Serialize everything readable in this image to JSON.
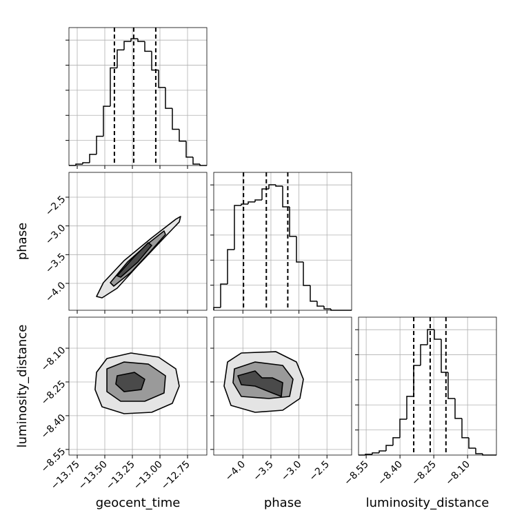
{
  "chart_data": [
    {
      "type": "histogram",
      "bins": [
        -13.825,
        -13.7625,
        -13.7,
        -13.6375,
        -13.575,
        -13.5125,
        -13.45,
        -13.3875,
        -13.325,
        -13.2625,
        -13.2,
        -13.1375,
        -13.075,
        -13.0125,
        -12.95,
        -12.8875,
        -12.825,
        -12.7625,
        -12.7,
        -12.6375,
        -12.575
      ],
      "values": [
        0,
        11,
        22,
        89,
        233,
        472,
        778,
        922,
        989,
        1011,
        989,
        911,
        761,
        622,
        456,
        289,
        194,
        67,
        11,
        0
      ],
      "quantiles": [
        -13.413,
        -13.238,
        -13.038
      ],
      "xlim": [
        -13.825,
        -12.575
      ],
      "ylim": [
        0,
        1100
      ],
      "xticks": [
        -13.75,
        -13.5,
        -13.25,
        -13.0,
        -12.75
      ],
      "yticks": [
        200,
        400,
        600,
        800,
        1000
      ],
      "grid": true
    },
    {
      "type": "contour",
      "y_label": "phase",
      "series": [
        {
          "color": "#e4e4e4",
          "x": [
            -13.575,
            -13.513,
            -13.325,
            -13.075,
            -12.856,
            -12.813,
            -12.825,
            -12.981,
            -13.2,
            -13.388,
            -13.525
          ],
          "y": [
            -4.228,
            -3.988,
            -3.604,
            -3.208,
            -2.883,
            -2.835,
            -2.931,
            -3.244,
            -3.688,
            -4.084,
            -4.252
          ]
        },
        {
          "color": "#9a9a9a",
          "x": [
            -13.45,
            -13.294,
            -13.106,
            -12.963,
            -12.95,
            -13.088,
            -13.263,
            -13.419
          ],
          "y": [
            -3.988,
            -3.628,
            -3.304,
            -3.088,
            -3.148,
            -3.448,
            -3.808,
            -4.048
          ]
        },
        {
          "color": "#4a4a4a",
          "x": [
            -13.388,
            -13.231,
            -13.106,
            -13.075,
            -13.2,
            -13.356
          ],
          "y": [
            -3.868,
            -3.532,
            -3.292,
            -3.34,
            -3.628,
            -3.892
          ]
        }
      ],
      "xlim": [
        -13.825,
        -12.575
      ],
      "ylim": [
        -4.468,
        -2.068
      ],
      "xticks": [
        -13.75,
        -13.5,
        -13.25,
        -13.0,
        -12.75
      ],
      "yticks": [
        {
          "value": -2.5,
          "label": "−2.5"
        },
        {
          "value": -3.0,
          "label": "−3.0"
        },
        {
          "value": -3.5,
          "label": "−3.5"
        },
        {
          "value": -4.0,
          "label": "−4.0"
        }
      ],
      "grid": true
    },
    {
      "type": "histogram",
      "bins": [
        -4.52,
        -4.397,
        -4.274,
        -4.151,
        -4.028,
        -3.905,
        -3.782,
        -3.659,
        -3.536,
        -3.413,
        -3.29,
        -3.167,
        -3.044,
        -2.921,
        -2.798,
        -2.675,
        -2.552,
        -2.429,
        -2.306,
        -2.183,
        -2.06
      ],
      "values": [
        22,
        209,
        484,
        836,
        847,
        864,
        880,
        968,
        1001,
        990,
        825,
        589,
        385,
        198,
        72,
        33,
        11,
        0,
        0,
        0
      ],
      "quantiles": [
        -3.989,
        -3.582,
        -3.199
      ],
      "xlim": [
        -4.52,
        -2.06
      ],
      "ylim": [
        0,
        1100
      ],
      "xticks": [
        -4.0,
        -3.5,
        -3.0,
        -2.5
      ],
      "yticks": [
        200,
        400,
        600,
        800,
        1000
      ],
      "grid": true
    },
    {
      "type": "contour",
      "x_label": "geocent_time",
      "y_label": "luminosity_distance",
      "series": [
        {
          "color": "#e4e4e4",
          "x": [
            -13.575,
            -13.481,
            -13.263,
            -13.013,
            -12.856,
            -12.825,
            -12.888,
            -13.075,
            -13.325,
            -13.525,
            -13.588
          ],
          "y": [
            -8.2073,
            -8.146,
            -8.1214,
            -8.1398,
            -8.1919,
            -8.2685,
            -8.3452,
            -8.385,
            -8.3911,
            -8.3605,
            -8.2839
          ]
        },
        {
          "color": "#9a9a9a",
          "x": [
            -13.481,
            -13.325,
            -13.106,
            -12.95,
            -12.963,
            -13.138,
            -13.356,
            -13.481
          ],
          "y": [
            -8.1919,
            -8.1613,
            -8.1705,
            -8.2226,
            -8.2992,
            -8.3359,
            -8.3359,
            -8.2931
          ]
        },
        {
          "color": "#4a4a4a",
          "x": [
            -13.388,
            -13.231,
            -13.138,
            -13.169,
            -13.325,
            -13.4
          ],
          "y": [
            -8.2226,
            -8.2073,
            -8.2379,
            -8.2839,
            -8.2931,
            -8.2594
          ]
        }
      ],
      "xlim": [
        -13.825,
        -12.575
      ],
      "ylim": [
        -8.575,
        -7.962
      ],
      "xticks": [
        {
          "value": -13.75,
          "label": "−13.75"
        },
        {
          "value": -13.5,
          "label": "−13.50"
        },
        {
          "value": -13.25,
          "label": "−13.25"
        },
        {
          "value": -13.0,
          "label": "−13.00"
        },
        {
          "value": -12.75,
          "label": "−12.75"
        }
      ],
      "yticks": [
        {
          "value": -8.1,
          "label": "−8.10"
        },
        {
          "value": -8.25,
          "label": "−8.25"
        },
        {
          "value": -8.4,
          "label": "−8.40"
        },
        {
          "value": -8.55,
          "label": "−8.55"
        }
      ],
      "grid": true
    },
    {
      "type": "contour",
      "x_label": "phase",
      "series": [
        {
          "color": "#e4e4e4",
          "x": [
            -4.274,
            -4.028,
            -3.413,
            -3.044,
            -2.921,
            -2.983,
            -3.29,
            -3.782,
            -4.2125,
            -4.3355
          ],
          "y": [
            -8.1613,
            -8.1214,
            -8.1153,
            -8.1613,
            -8.2379,
            -8.3237,
            -8.3758,
            -8.385,
            -8.3544,
            -8.2685
          ]
        },
        {
          "color": "#9a9a9a",
          "x": [
            -4.151,
            -3.782,
            -3.29,
            -3.1055,
            -3.167,
            -3.536,
            -4.028,
            -4.1755
          ],
          "y": [
            -8.1919,
            -8.1613,
            -8.1766,
            -8.2379,
            -8.3145,
            -8.3237,
            -8.3145,
            -8.2532
          ]
        },
        {
          "color": "#4a4a4a",
          "x": [
            -4.0895,
            -3.782,
            -3.659,
            -3.4745,
            -3.29,
            -3.3146,
            -3.4745,
            -3.782,
            -4.028
          ],
          "y": [
            -8.2226,
            -8.2011,
            -8.2318,
            -8.2318,
            -8.2532,
            -8.3145,
            -8.2992,
            -8.2685,
            -8.2624
          ]
        }
      ],
      "xlim": [
        -4.52,
        -2.06
      ],
      "ylim": [
        -8.575,
        -7.962
      ],
      "xticks": [
        {
          "value": -4.0,
          "label": "−4.0"
        },
        {
          "value": -3.5,
          "label": "−3.5"
        },
        {
          "value": -3.0,
          "label": "−3.0"
        },
        {
          "value": -2.5,
          "label": "−2.5"
        }
      ],
      "yticks": [
        -8.1,
        -8.25,
        -8.4,
        -8.55
      ],
      "grid": true
    },
    {
      "type": "histogram",
      "x_label": "luminosity_distance",
      "bins": [
        -8.584,
        -8.5534,
        -8.5228,
        -8.4922,
        -8.4616,
        -8.431,
        -8.4004,
        -8.3698,
        -8.3392,
        -8.3086,
        -8.278,
        -8.2474,
        -8.2168,
        -8.1862,
        -8.1556,
        -8.125,
        -8.0944,
        -8.0638,
        -8.0332,
        -8.0026,
        -7.972
      ],
      "values": [
        0,
        6,
        17,
        33,
        77,
        138,
        286,
        468,
        715,
        880,
        1001,
        924,
        660,
        451,
        292,
        138,
        55,
        11,
        0,
        0
      ],
      "quantiles": [
        -8.339,
        -8.266,
        -8.196
      ],
      "xlim": [
        -8.584,
        -7.972
      ],
      "ylim": [
        0,
        1100
      ],
      "xticks": [
        {
          "value": -8.55,
          "label": "−8.55"
        },
        {
          "value": -8.4,
          "label": "−8.40"
        },
        {
          "value": -8.25,
          "label": "−8.25"
        },
        {
          "value": -8.1,
          "label": "−8.10"
        }
      ],
      "yticks": [
        200,
        400,
        600,
        800,
        1000
      ],
      "grid": true
    }
  ]
}
